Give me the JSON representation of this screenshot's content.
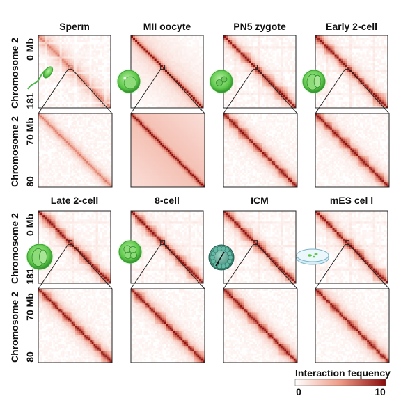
{
  "chart_data": {
    "type": "heatmap",
    "panels": [
      {
        "title": "Sperm",
        "zoom_style": "sparse",
        "icon": "sperm-icon"
      },
      {
        "title": "MII oocyte",
        "zoom_style": "strong-diagonal",
        "icon": "oocyte-icon"
      },
      {
        "title": "PN5 zygote",
        "zoom_style": "domains",
        "icon": "zygote-icon"
      },
      {
        "title": "Early 2-cell",
        "zoom_style": "domains",
        "icon": "early-2-cell-icon"
      },
      {
        "title": "Late 2-cell",
        "zoom_style": "domains",
        "icon": "late-2-cell-icon"
      },
      {
        "title": "8-cell",
        "zoom_style": "domains",
        "icon": "8-cell-icon"
      },
      {
        "title": "ICM",
        "zoom_style": "domains",
        "icon": "icm-blastocyst-icon"
      },
      {
        "title": "mES cel l",
        "zoom_style": "domains",
        "icon": "petri-dish-icon"
      }
    ],
    "overview_axis": {
      "label": "Chromosome 2",
      "ticks": [
        "0 Mb",
        "181"
      ]
    },
    "zoom_axis": {
      "label": "Chromosome 2",
      "ticks": [
        "70 Mb",
        "80"
      ]
    },
    "colorbar": {
      "label": "Interaction fequency",
      "min": 0,
      "max": 10,
      "min_label": "0",
      "max_label": "10",
      "colors": [
        "#ffffff",
        "#ee9a86",
        "#8a0b0b"
      ]
    },
    "accent_color": "#c8362a"
  }
}
